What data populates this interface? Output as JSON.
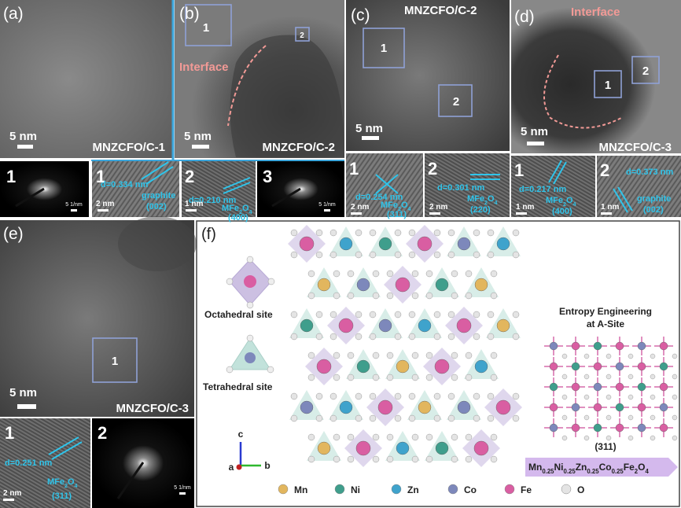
{
  "a": {
    "label": "(a)",
    "scale": "5 nm",
    "sample": "MNZCFO/C-1",
    "inset1": {
      "index": "1",
      "scale": "5 1/nm"
    }
  },
  "b": {
    "label": "(b)",
    "box1": "1",
    "box2": "2",
    "interface": "Interface",
    "scale": "5 nm",
    "sample": "MNZCFO/C-2",
    "inset1": {
      "index": "1",
      "d": "d=0.334 nm",
      "phase": [
        "graphite"
      ],
      "plane": "(002)",
      "scale": "2 nm"
    },
    "inset2": {
      "index": "2",
      "d": "d=0.210 nm",
      "phase": [
        "MFe",
        "2",
        "O",
        "4"
      ],
      "plane": "(400)",
      "scale": "1 nm"
    },
    "inset3": {
      "index": "3",
      "scale": "5 1/nm"
    }
  },
  "c": {
    "label": "(c)",
    "sample": "MNZCFO/C-2",
    "box1": "1",
    "box2": "2",
    "scale": "5 nm",
    "inset1": {
      "index": "1",
      "d": "d=0.254 nm",
      "phase": [
        "MFe",
        "2",
        "O",
        "4"
      ],
      "plane": "(311)",
      "scale": "2 nm"
    },
    "inset2": {
      "index": "2",
      "d": "d=0.301 nm",
      "phase": [
        "MFe",
        "2",
        "O",
        "4"
      ],
      "plane": "(220)",
      "scale": "2 nm"
    }
  },
  "d": {
    "label": "(d)",
    "interface": "Interface",
    "box1": "1",
    "box2": "2",
    "scale": "5 nm",
    "sample": "MNZCFO/C-3",
    "inset1": {
      "index": "1",
      "d": "d=0.217 nm",
      "phase": [
        "MFe",
        "2",
        "O",
        "4"
      ],
      "plane": "(400)",
      "scale": "1 nm"
    },
    "inset2": {
      "index": "2",
      "d": "d=0.373 nm",
      "phase": [
        "graphite"
      ],
      "plane": "(002)",
      "scale": "1 nm"
    }
  },
  "e": {
    "label": "(e)",
    "box1": "1",
    "scale": "5 nm",
    "sample": "MNZCFO/C-3",
    "inset1": {
      "index": "1",
      "d": "d=0.251 nm",
      "phase": [
        "MFe",
        "2",
        "O",
        "4"
      ],
      "plane": "(311)",
      "scale": "2 nm"
    },
    "inset2": {
      "index": "2",
      "scale": "5 1/nm"
    }
  },
  "f": {
    "label": "(f)",
    "octahedral": "Octahedral site",
    "tetrahedral": "Tetrahedral site",
    "heading": [
      "Entropy Engineering",
      "at A-Site"
    ],
    "plane": "(311)",
    "formula": [
      "Mn",
      "0.25",
      "Ni",
      "0.25",
      "Zn",
      "0.25",
      "Co",
      "0.25",
      "Fe",
      "2",
      "O",
      "4"
    ],
    "axes": {
      "c": "c",
      "a": "a",
      "b": "b"
    },
    "legend": [
      {
        "name": "Mn",
        "color": "#e2b65e"
      },
      {
        "name": "Ni",
        "color": "#3f9e8c"
      },
      {
        "name": "Zn",
        "color": "#3fa3cc"
      },
      {
        "name": "Co",
        "color": "#7d88bb"
      },
      {
        "name": "Fe",
        "color": "#d95ea2"
      },
      {
        "name": "O",
        "color": "#e4e4e4"
      }
    ]
  }
}
